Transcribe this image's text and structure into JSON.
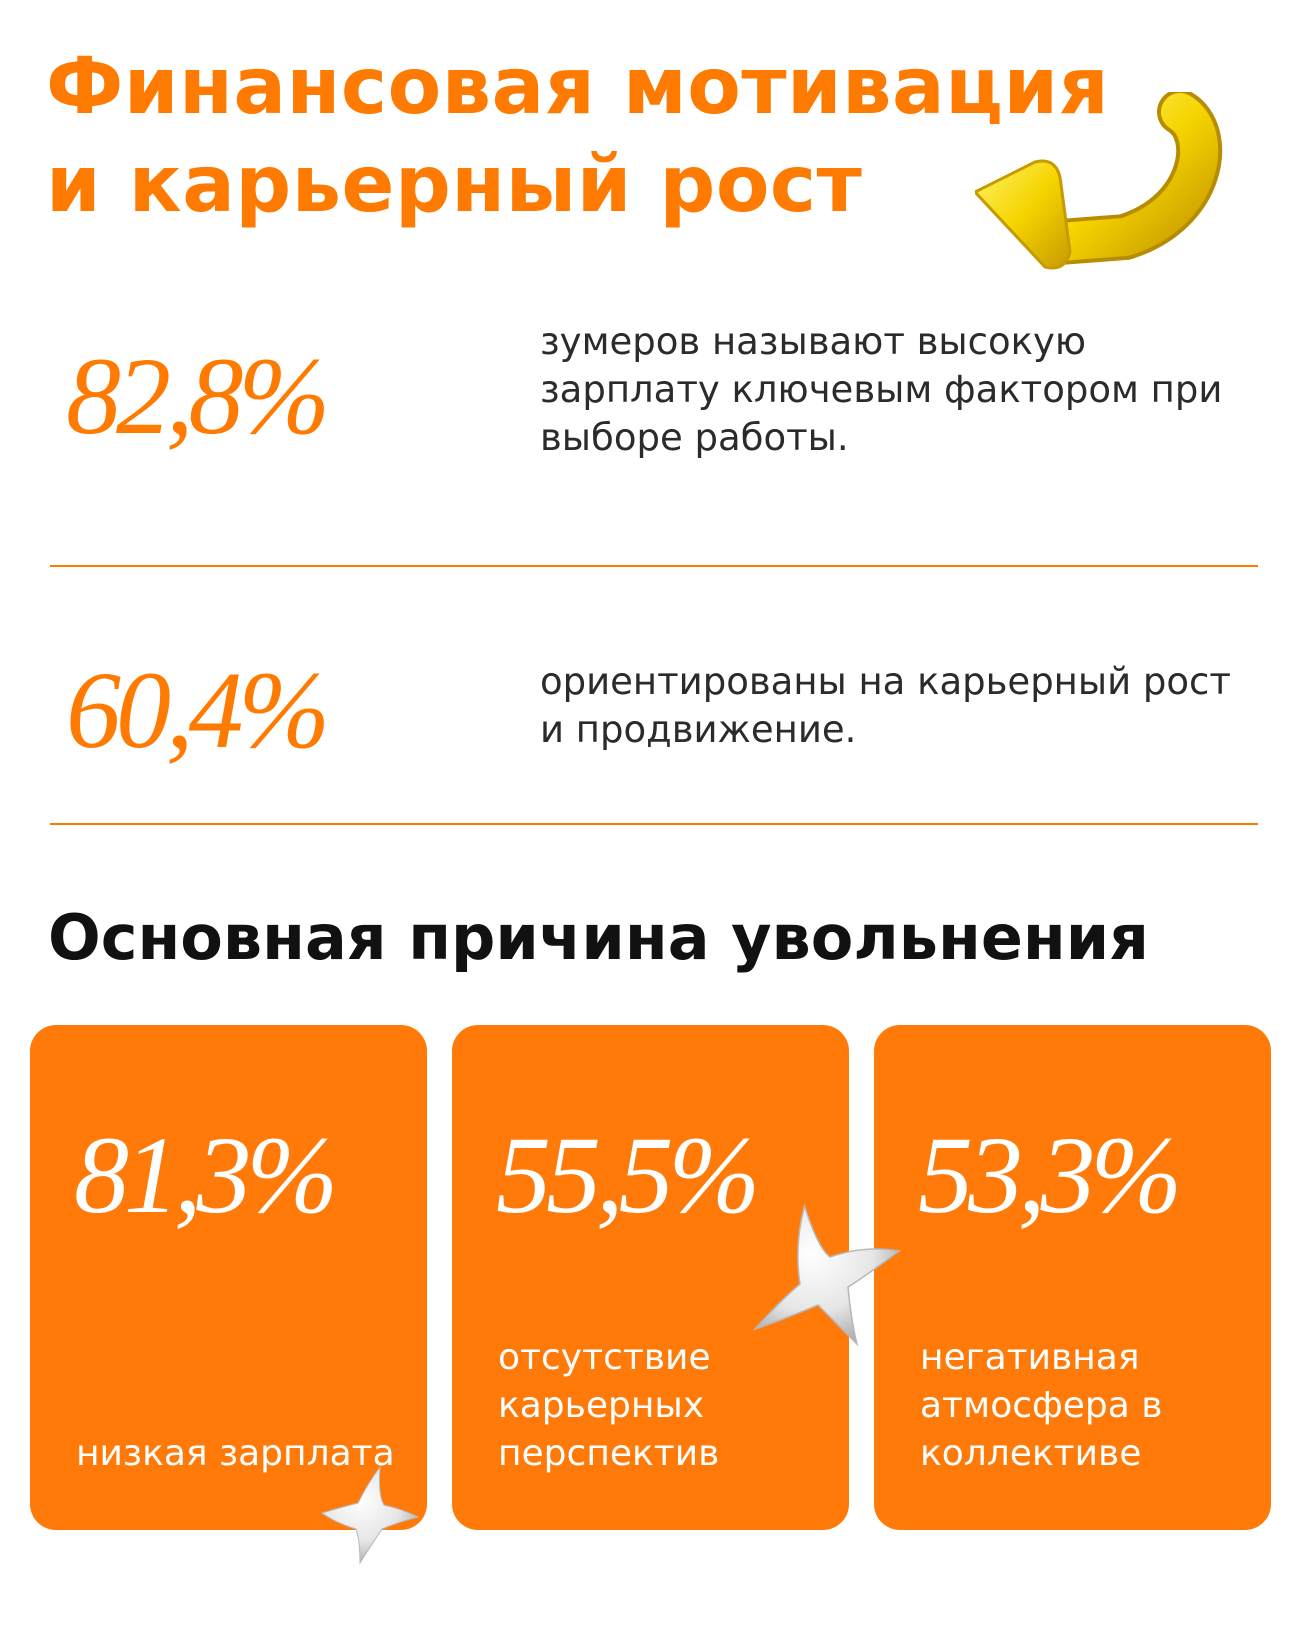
{
  "header": {
    "title_line1": "Финансовая мотивация",
    "title_line2": "и карьерный рост"
  },
  "stats": [
    {
      "value": "82,8%",
      "description": "зумеров называют высокую зарплату ключевым фактором при выборе работы."
    },
    {
      "value": "60,4%",
      "description": "ориентированы на карьерный рост и продвижение."
    }
  ],
  "section": {
    "title": "Основная причина увольнения"
  },
  "cards": [
    {
      "value": "81,3%",
      "label": "низкая зарплата"
    },
    {
      "value": "55,5%",
      "label": "отсутствие карьерных перспектив"
    },
    {
      "value": "53,3%",
      "label": "негативная атмосфера в коллективе"
    }
  ],
  "colors": {
    "accent": "#ff7a00",
    "card": "#ff7a08",
    "heading": "#111111",
    "text": "#2b2b2b",
    "arrow": "#f5d400"
  },
  "decorations": {
    "arrow": "yellow-3d-arrow-icon",
    "stars": "white-3d-star-icon"
  }
}
